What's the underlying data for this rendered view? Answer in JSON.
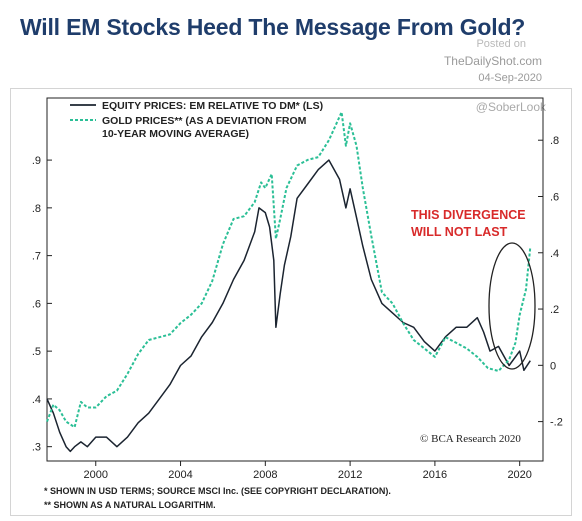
{
  "header": {
    "title": "Will EM Stocks Heed The Message From Gold?",
    "posted_on": "Posted on",
    "site": "TheDailyShot.com",
    "date": "04-Sep-2020",
    "handle": "@SoberLook"
  },
  "annotation": {
    "line1": "THIS DIVERGENCE",
    "line2": "WILL NOT LAST"
  },
  "credit": "© BCA Research 2020",
  "footnotes": [
    "* SHOWN IN USD TERMS; SOURCE MSCI Inc. (SEE COPYRIGHT DECLARATION).",
    "** SHOWN AS A NATURAL LOGARITHM."
  ],
  "colors": {
    "equity_line": "#1b2430",
    "gold_line": "#2bbf96",
    "annotation": "#d82a2a"
  },
  "chart_data": {
    "type": "line",
    "title": "Will EM Stocks Heed The Message From Gold?",
    "xlabel": "",
    "ylabel_left": "",
    "ylabel_right": "",
    "xlim": [
      1997.7,
      2021.1
    ],
    "ylim_left": [
      0.27,
      1.03
    ],
    "ylim_right": [
      -0.34,
      0.95
    ],
    "x_ticks": [
      2000,
      2004,
      2008,
      2012,
      2016,
      2020
    ],
    "x_tick_labels": [
      "2000",
      "2004",
      "2008",
      "2012",
      "2016",
      "2020"
    ],
    "y_ticks_left": [
      0.3,
      0.4,
      0.5,
      0.6,
      0.7,
      0.8,
      0.9
    ],
    "y_tick_labels_left": [
      ".3",
      ".4",
      ".5",
      ".6",
      ".7",
      ".8",
      ".9"
    ],
    "y_ticks_right": [
      -0.2,
      0,
      0.2,
      0.4,
      0.6,
      0.8
    ],
    "y_tick_labels_right": [
      "-.2",
      "0",
      ".2",
      ".4",
      ".6",
      ".8"
    ],
    "legend_position": "top-left",
    "series": [
      {
        "name": "EQUITY PRICES: EM RELATIVE TO DM* (LS)",
        "axis": "left",
        "style": "solid",
        "x": [
          1997.7,
          1998.0,
          1998.3,
          1998.6,
          1998.8,
          1999.0,
          1999.3,
          1999.6,
          2000.0,
          2000.5,
          2001.0,
          2001.5,
          2002.0,
          2002.5,
          2003.0,
          2003.5,
          2004.0,
          2004.5,
          2005.0,
          2005.5,
          2006.0,
          2006.5,
          2007.0,
          2007.5,
          2007.7,
          2008.0,
          2008.2,
          2008.4,
          2008.5,
          2008.7,
          2008.9,
          2009.2,
          2009.5,
          2010.0,
          2010.5,
          2011.0,
          2011.5,
          2011.8,
          2012.0,
          2012.3,
          2012.6,
          2013.0,
          2013.5,
          2014.0,
          2014.5,
          2015.0,
          2015.5,
          2016.0,
          2016.5,
          2017.0,
          2017.5,
          2018.0,
          2018.3,
          2018.6,
          2019.0,
          2019.5,
          2020.0,
          2020.2,
          2020.5
        ],
        "y": [
          0.4,
          0.37,
          0.33,
          0.3,
          0.29,
          0.3,
          0.31,
          0.3,
          0.32,
          0.32,
          0.3,
          0.32,
          0.35,
          0.37,
          0.4,
          0.43,
          0.47,
          0.49,
          0.53,
          0.56,
          0.6,
          0.65,
          0.69,
          0.75,
          0.8,
          0.79,
          0.76,
          0.69,
          0.55,
          0.62,
          0.68,
          0.74,
          0.82,
          0.85,
          0.88,
          0.9,
          0.86,
          0.8,
          0.84,
          0.78,
          0.72,
          0.65,
          0.6,
          0.58,
          0.56,
          0.55,
          0.52,
          0.5,
          0.53,
          0.55,
          0.55,
          0.57,
          0.54,
          0.5,
          0.51,
          0.47,
          0.5,
          0.46,
          0.48
        ]
      },
      {
        "name": "GOLD PRICES** (AS A DEVIATION FROM 10-YEAR MOVING AVERAGE)",
        "axis": "right",
        "style": "dashed",
        "x": [
          1997.7,
          1998.0,
          1998.3,
          1998.6,
          1999.0,
          1999.3,
          1999.6,
          2000.0,
          2000.5,
          2001.0,
          2001.5,
          2002.0,
          2002.5,
          2003.0,
          2003.5,
          2004.0,
          2004.5,
          2005.0,
          2005.5,
          2006.0,
          2006.5,
          2007.0,
          2007.5,
          2007.8,
          2008.0,
          2008.3,
          2008.5,
          2008.7,
          2009.0,
          2009.5,
          2010.0,
          2010.5,
          2011.0,
          2011.3,
          2011.6,
          2011.8,
          2012.0,
          2012.3,
          2012.6,
          2013.0,
          2013.5,
          2014.0,
          2014.5,
          2015.0,
          2015.5,
          2016.0,
          2016.5,
          2017.0,
          2017.5,
          2018.0,
          2018.5,
          2019.0,
          2019.5,
          2019.8,
          2020.0,
          2020.3,
          2020.5
        ],
        "y": [
          -0.2,
          -0.14,
          -0.16,
          -0.2,
          -0.22,
          -0.13,
          -0.15,
          -0.15,
          -0.11,
          -0.09,
          -0.03,
          0.04,
          0.09,
          0.1,
          0.11,
          0.15,
          0.18,
          0.22,
          0.3,
          0.43,
          0.52,
          0.53,
          0.58,
          0.65,
          0.63,
          0.68,
          0.45,
          0.52,
          0.63,
          0.71,
          0.73,
          0.74,
          0.8,
          0.85,
          0.9,
          0.78,
          0.86,
          0.78,
          0.63,
          0.46,
          0.26,
          0.22,
          0.15,
          0.09,
          0.06,
          0.03,
          0.1,
          0.08,
          0.06,
          0.03,
          -0.01,
          -0.02,
          0.02,
          0.08,
          0.18,
          0.27,
          0.42
        ]
      }
    ]
  }
}
